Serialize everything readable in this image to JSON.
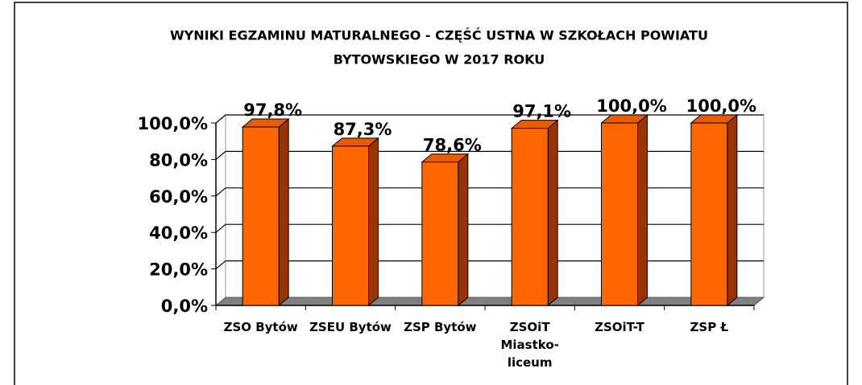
{
  "chart_data": {
    "type": "bar3d",
    "title": [
      "WYNIKI EGZAMINU MATURALNEGO - CZĘŚĆ USTNA W SZKOŁACH POWIATU",
      "BYTOWSKIEGO W 2017 ROKU"
    ],
    "categories": [
      "ZSO Bytów",
      "ZSEU Bytów",
      "ZSP Bytów",
      "ZSOiT Miastko-liceum",
      "ZSOiT-T",
      "ZSP Ł"
    ],
    "values": [
      97.8,
      87.3,
      78.6,
      97.1,
      100,
      100
    ],
    "value_labels": [
      "97,8%",
      "87,3%",
      "78,6%",
      "97,1%",
      "100,0%",
      "100,0%"
    ],
    "color": "#ff6600",
    "ylim": [
      0,
      100
    ],
    "yticks": [
      {
        "value": 0,
        "label": "0,0%"
      },
      {
        "value": 20,
        "label": "20,0%"
      },
      {
        "value": 40,
        "label": "40,0%"
      },
      {
        "value": 60,
        "label": "60,0%"
      },
      {
        "value": 80,
        "label": "80,0%"
      },
      {
        "value": 100,
        "label": "100,0%"
      }
    ],
    "grid": true
  }
}
